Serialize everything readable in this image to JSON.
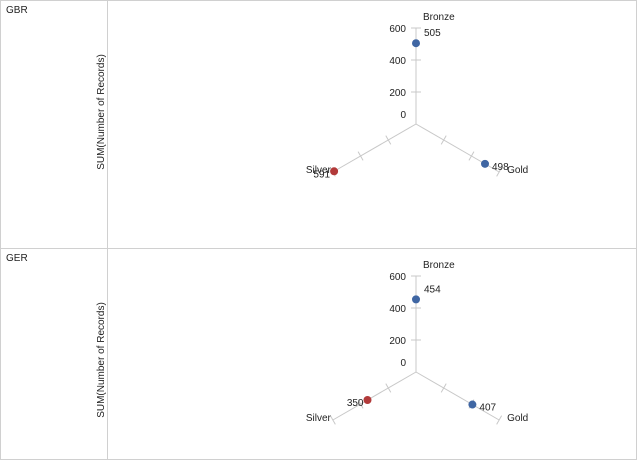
{
  "colors": {
    "border": "#d0d0d0",
    "axis": "#c8c8c8",
    "text": "#222222",
    "blue": "#3f66a3",
    "red": "#b23a3a"
  },
  "chart_data": {
    "type": "scatter",
    "subtype": "radial-3-axis",
    "ylabel": "SUM(Number of Records)",
    "axes": [
      "Bronze",
      "Gold",
      "Silver"
    ],
    "range": [
      0,
      600
    ],
    "ticks": [
      0,
      200,
      400,
      600
    ],
    "panels": [
      {
        "name": "GBR",
        "points": [
          {
            "axis": "Bronze",
            "value": 505,
            "color": "blue",
            "label": "505"
          },
          {
            "axis": "Gold",
            "value": 498,
            "color": "blue",
            "label": "498"
          },
          {
            "axis": "Silver",
            "value": 591,
            "color": "red",
            "label": "591"
          }
        ]
      },
      {
        "name": "GER",
        "points": [
          {
            "axis": "Bronze",
            "value": 454,
            "color": "blue",
            "label": "454"
          },
          {
            "axis": "Gold",
            "value": 407,
            "color": "blue",
            "label": "407"
          },
          {
            "axis": "Silver",
            "value": 350,
            "color": "red",
            "label": "350"
          }
        ]
      }
    ]
  }
}
